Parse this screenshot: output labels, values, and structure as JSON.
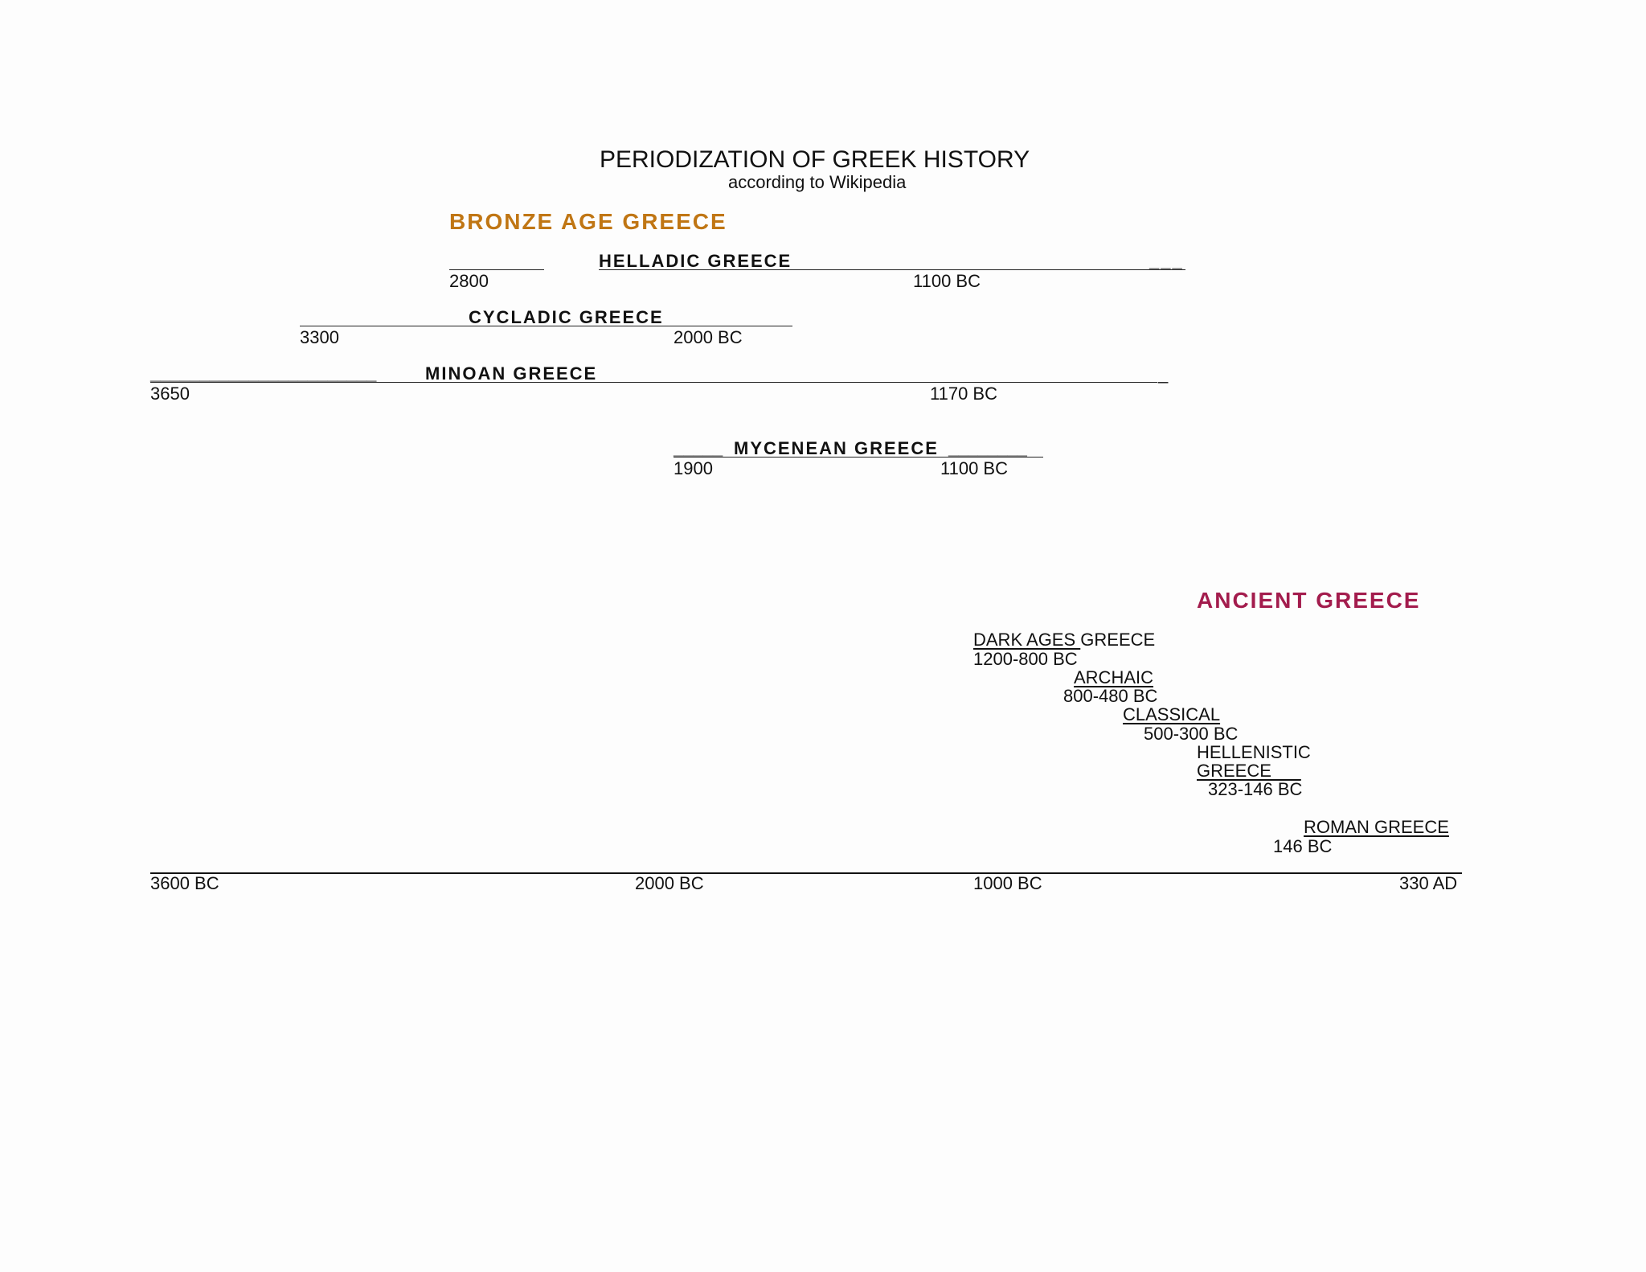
{
  "title": "PERIODIZATION OF GREEK HISTORY",
  "subtitle": "according to Wikipedia",
  "colors": {
    "bronze_age": "#c07614",
    "ancient": "#a31c4d",
    "text": "#111111"
  },
  "bronze_age": {
    "heading": "BRONZE AGE GREECE",
    "periods": [
      {
        "name": "HELLADIC GREECE",
        "start": "2800",
        "end": "1100 BC",
        "tail": "___"
      },
      {
        "name": "CYCLADIC GREECE",
        "start": "3300",
        "end": "2000 BC"
      },
      {
        "name": "MINOAN GREECE",
        "lead": "_______________________",
        "start": "3650",
        "end": "1170 BC",
        "tail": "_"
      },
      {
        "name": "MYCENEAN GREECE",
        "lead": "_____",
        "start": "1900",
        "end": "1100 BC",
        "tail": "________"
      }
    ]
  },
  "ancient": {
    "heading": "ANCIENT GREECE",
    "periods": [
      {
        "name_underlined": "DARK AGES ",
        "name_rest": "GREECE",
        "dates": "1200-800 BC"
      },
      {
        "name": "ARCHAIC",
        "dates": "800-480 BC"
      },
      {
        "name": "CLASSICAL",
        "dates": "500-300 BC"
      },
      {
        "name_line1": "HELLENISTIC",
        "name_line2": "GREECE___",
        "dates": "323-146 BC"
      },
      {
        "name": "ROMAN GREECE",
        "dates": "146 BC"
      }
    ]
  },
  "axis": {
    "labels": [
      "3600 BC",
      "2000 BC",
      "1000 BC",
      "330 AD"
    ]
  }
}
